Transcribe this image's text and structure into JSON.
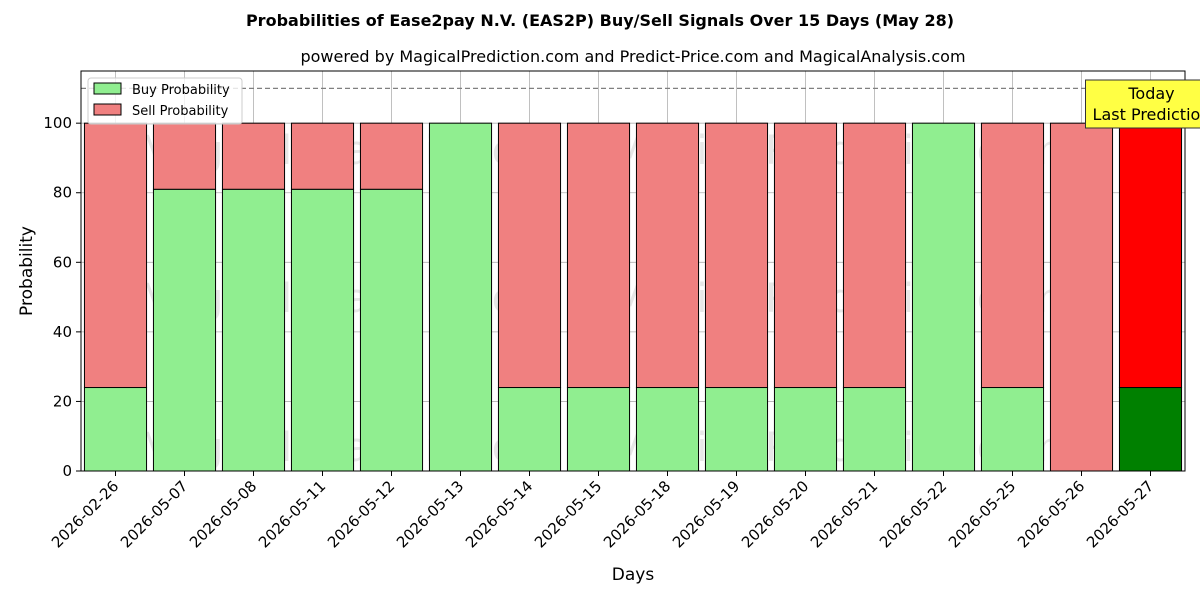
{
  "chart_data": {
    "type": "bar",
    "stacked": true,
    "title": "Probabilities of Ease2pay N.V. (EAS2P) Buy/Sell Signals Over 15 Days (May 28)",
    "subtitle": "powered by MagicalPrediction.com and Predict-Price.com and MagicalAnalysis.com",
    "xlabel": "Days",
    "ylabel": "Probability",
    "ylim": [
      0,
      115
    ],
    "yticks": [
      0,
      20,
      40,
      60,
      80,
      100
    ],
    "grid": true,
    "legend_position": "top-left",
    "reference_line": 110,
    "categories": [
      "2026-02-26",
      "2026-05-07",
      "2026-05-08",
      "2026-05-11",
      "2026-05-12",
      "2026-05-13",
      "2026-05-14",
      "2026-05-15",
      "2026-05-18",
      "2026-05-19",
      "2026-05-20",
      "2026-05-21",
      "2026-05-22",
      "2026-05-25",
      "2026-05-26",
      "2026-05-27"
    ],
    "series": [
      {
        "name": "Buy Probability",
        "color": "#90ee90",
        "values": [
          24,
          81,
          81,
          81,
          81,
          100,
          24,
          24,
          24,
          24,
          24,
          24,
          100,
          24,
          0,
          24
        ]
      },
      {
        "name": "Sell Probability",
        "color": "#f08080",
        "values": [
          76,
          19,
          19,
          19,
          19,
          0,
          76,
          76,
          76,
          76,
          76,
          76,
          0,
          76,
          100,
          76
        ]
      }
    ],
    "highlight": {
      "index": 15,
      "buy_color": "#008000",
      "sell_color": "#ff0000"
    },
    "annotation": {
      "lines": [
        "Today",
        "Last Prediction"
      ],
      "color": "#ffff44"
    },
    "watermarks": [
      "MagicalAnalysis.com",
      "MagicalPrediction.com"
    ]
  }
}
